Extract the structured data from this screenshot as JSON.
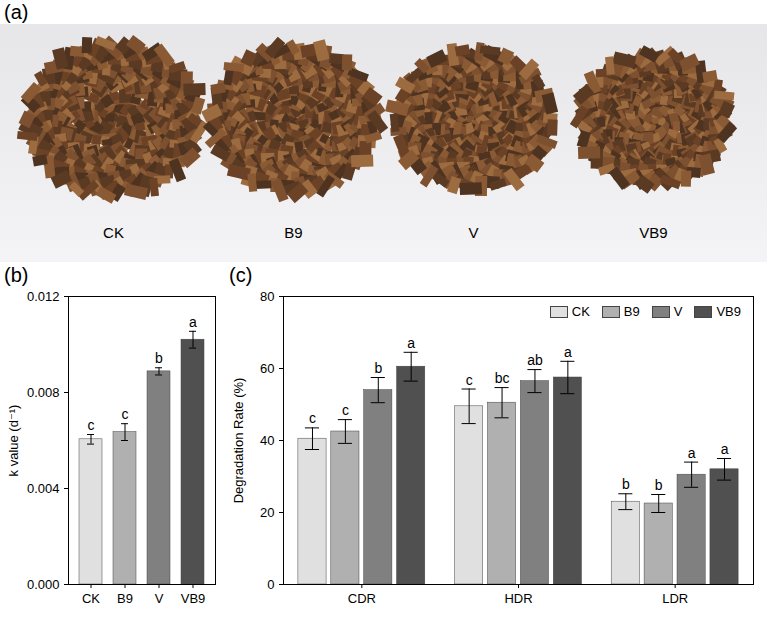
{
  "photo": {
    "panel_label": "(a)",
    "labels": [
      "CK",
      "B9",
      "V",
      "VB9"
    ]
  },
  "chart_data": [
    {
      "type": "bar",
      "panel_label": "(b)",
      "categories": [
        "CK",
        "B9",
        "V",
        "VB9"
      ],
      "values": [
        0.00605,
        0.00635,
        0.00888,
        0.0102
      ],
      "errors": [
        0.0002,
        0.00035,
        0.00015,
        0.00035
      ],
      "significance": [
        "c",
        "c",
        "b",
        "a"
      ],
      "colors": [
        "#e0e0e0",
        "#b0b0b0",
        "#808080",
        "#505050"
      ],
      "y_label": "k value (d⁻¹)",
      "ylim": [
        0,
        0.012
      ],
      "yticks": [
        {
          "value": 0,
          "label": "0.000"
        },
        {
          "value": 0.004,
          "label": "0.004"
        },
        {
          "value": 0.008,
          "label": "0.008"
        },
        {
          "value": 0.012,
          "label": "0.012"
        }
      ]
    },
    {
      "type": "bar",
      "panel_label": "(c)",
      "categories": [
        "CDR",
        "HDR",
        "LDR"
      ],
      "series": [
        {
          "name": "CK",
          "color": "#e0e0e0",
          "values": [
            40.5,
            49.5,
            23
          ],
          "errors": [
            3,
            4.8,
            2.2
          ],
          "significance": [
            "c",
            "c",
            "b"
          ]
        },
        {
          "name": "B9",
          "color": "#b0b0b0",
          "values": [
            42.5,
            50.5,
            22.5
          ],
          "errors": [
            3.3,
            4.2,
            2.5
          ],
          "significance": [
            "c",
            "bc",
            "b"
          ]
        },
        {
          "name": "V",
          "color": "#808080",
          "values": [
            54,
            56.5,
            30.5
          ],
          "errors": [
            3.5,
            3.2,
            3.5
          ],
          "significance": [
            "b",
            "ab",
            "a"
          ]
        },
        {
          "name": "VB9",
          "color": "#505050",
          "values": [
            60.5,
            57.5,
            32
          ],
          "errors": [
            4,
            4.5,
            3
          ],
          "significance": [
            "a",
            "a",
            "a"
          ]
        }
      ],
      "y_label": "Degradation Rate (%)",
      "ylim": [
        0,
        80
      ],
      "yticks": [
        0,
        20,
        40,
        60,
        80
      ],
      "legend": "top-right"
    }
  ]
}
